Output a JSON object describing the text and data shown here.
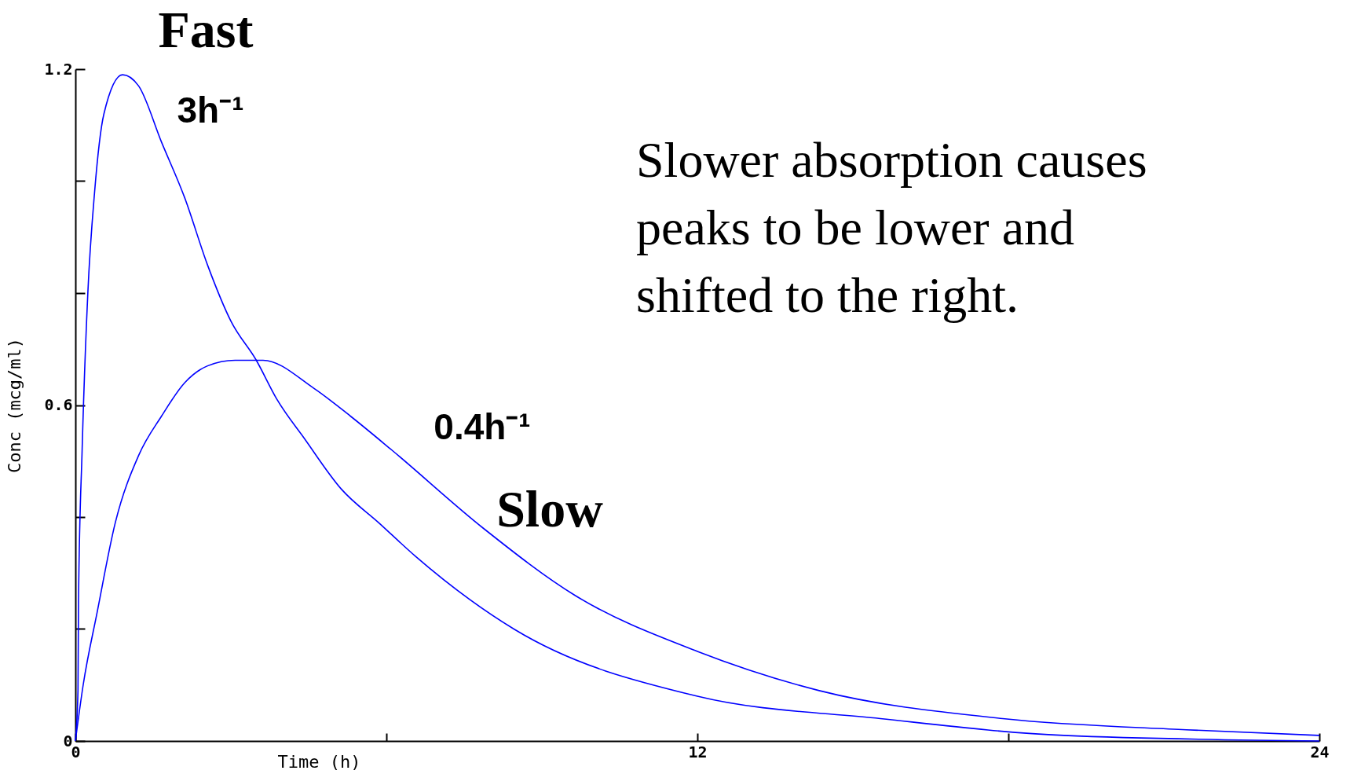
{
  "chart_data": {
    "type": "line",
    "xlabel": "Time (h)",
    "ylabel": "Conc (mcg/ml)",
    "xlim": [
      0,
      24
    ],
    "ylim": [
      0,
      1.2
    ],
    "xticks": [
      0,
      {
        "value": 6,
        "label": null
      },
      12,
      {
        "value": 18,
        "label": null
      },
      24
    ],
    "yticks": [
      0,
      {
        "value": 0.2,
        "label": null
      },
      {
        "value": 0.4,
        "label": null
      },
      0.6,
      {
        "value": 0.8,
        "label": null
      },
      {
        "value": 1.0,
        "label": null
      },
      1.2
    ],
    "grid": false,
    "legend": false,
    "marker": "none",
    "line_style": "solid",
    "series": [
      {
        "name": "Fast",
        "color": "#0000ff",
        "x": [
          0,
          0.05,
          0.06,
          0.13,
          0.24,
          0.37,
          0.55,
          0.91,
          1.22,
          1.66,
          2.11,
          2.55,
          3.0,
          3.49,
          3.89,
          4.42,
          5.13,
          5.85,
          6.56,
          8.46,
          12,
          15.53,
          19.07,
          24
        ],
        "values": [
          0,
          0.09,
          0.25,
          0.52,
          0.8,
          0.98,
          1.12,
          1.19,
          1.17,
          1.07,
          0.97,
          0.85,
          0.75,
          0.68,
          0.61,
          0.54,
          0.45,
          0.39,
          0.33,
          0.2,
          0.08,
          0.04,
          0.01,
          0.0
        ]
      },
      {
        "name": "Slow",
        "color": "#0000ff",
        "x": [
          0,
          0.15,
          0.42,
          0.77,
          1.22,
          1.66,
          2.11,
          2.55,
          3.08,
          3.62,
          4.6,
          5.31,
          6.1,
          7.87,
          9.64,
          12,
          14.35,
          17.89,
          21.43,
          24
        ],
        "values": [
          0,
          0.1,
          0.23,
          0.39,
          0.51,
          0.58,
          0.64,
          0.67,
          0.68,
          0.68,
          0.63,
          0.58,
          0.52,
          0.38,
          0.26,
          0.16,
          0.09,
          0.04,
          0.02,
          0.01
        ]
      }
    ],
    "annotations": [
      "3h⁻¹",
      "0.4h⁻¹",
      "Slower absorption causes peaks to be lower and shifted to the right."
    ]
  }
}
